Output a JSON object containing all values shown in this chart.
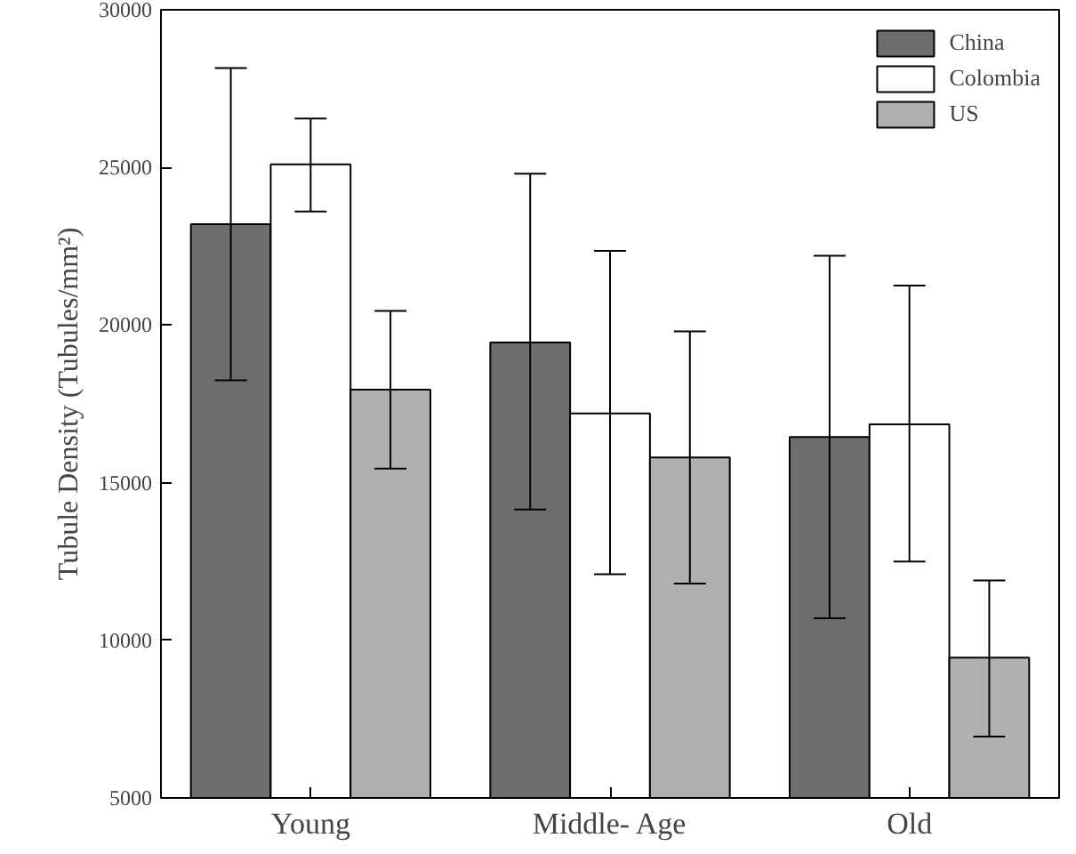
{
  "chart_data": {
    "type": "bar",
    "ylabel": "Tubule Density (Tubules/mm²)",
    "categories": [
      "Young",
      "Middle- Age",
      "Old"
    ],
    "series": [
      {
        "name": "China",
        "color": "#6e6e6e",
        "values": [
          23200,
          19450,
          16450
        ],
        "errors": [
          [
            18250,
            28150
          ],
          [
            14150,
            24800
          ],
          [
            10700,
            22200
          ]
        ]
      },
      {
        "name": "Colombia",
        "color": "#ffffff",
        "values": [
          25100,
          17200,
          16850
        ],
        "errors": [
          [
            23600,
            26550
          ],
          [
            12100,
            22350
          ],
          [
            12500,
            21250
          ]
        ]
      },
      {
        "name": "US",
        "color": "#b0b0b0",
        "values": [
          17950,
          15800,
          9450
        ],
        "errors": [
          [
            15450,
            20450
          ],
          [
            11800,
            19800
          ],
          [
            6950,
            11900
          ]
        ]
      }
    ],
    "ylim": [
      5000,
      30000
    ],
    "yticks": [
      5000,
      10000,
      15000,
      20000,
      25000,
      30000
    ],
    "grid": false,
    "legend": "top right"
  }
}
